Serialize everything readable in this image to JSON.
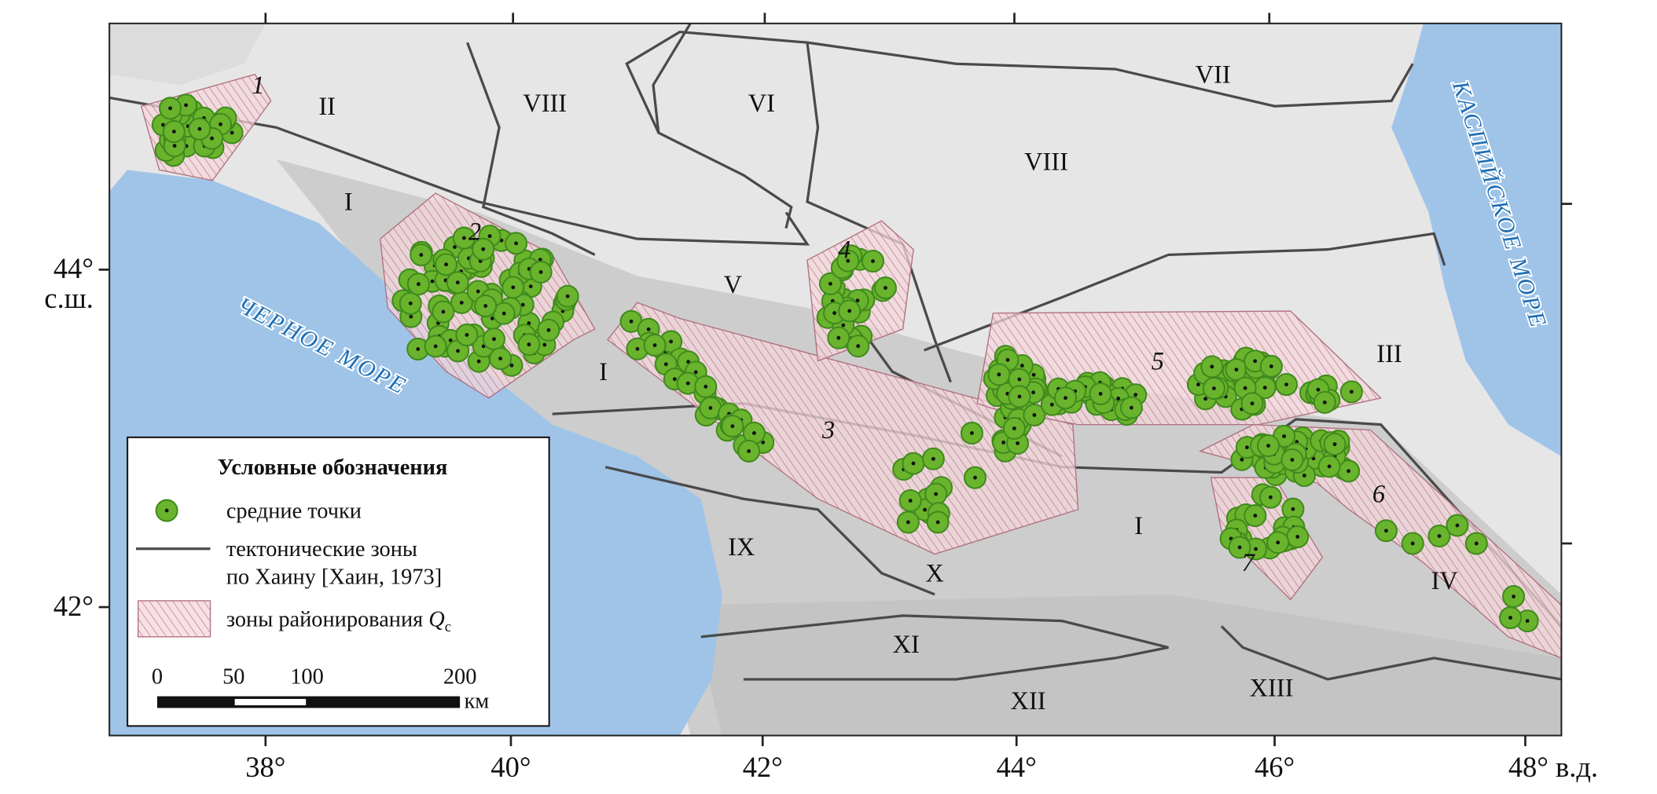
{
  "axes": {
    "lon": [
      "38°",
      "40°",
      "42°",
      "44°",
      "46°",
      "48° в.д."
    ],
    "lat": [
      "44°",
      "с.ш.",
      "42°"
    ]
  },
  "seas": [
    "ЧЕРНОЕ МОРЕ",
    "КАСПИЙСКОЕ МОРЕ"
  ],
  "zones": [
    "I",
    "II",
    "VIII",
    "VI",
    "VII",
    "VIII",
    "V",
    "I",
    "III",
    "IX",
    "X",
    "I",
    "XI",
    "XII",
    "XIII",
    "IV"
  ],
  "regions": [
    "1",
    "2",
    "3",
    "4",
    "5",
    "6",
    "7"
  ],
  "legend": {
    "title": "Условные обозначения",
    "points": "средние точки",
    "tectonic": [
      "тектонические зоны",
      "по Хаину [Хаин, 1973]"
    ],
    "zones": {
      "text": "зоны районирования",
      "symbol": "Q",
      "subscript": "c"
    }
  },
  "scale": {
    "ticks": [
      "0",
      "50",
      "100",
      "200"
    ],
    "unit": "км"
  }
}
